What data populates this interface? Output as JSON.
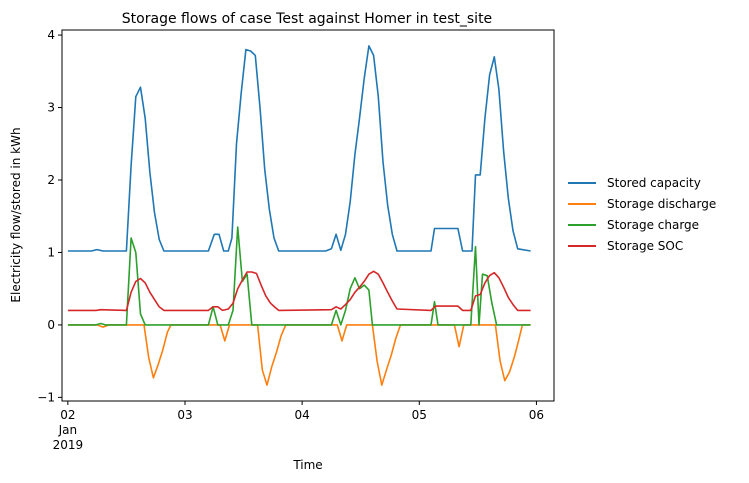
{
  "chart_data": {
    "type": "line",
    "title": "Storage flows of case Test against Homer in test_site",
    "xlabel": "Time",
    "ylabel": "Electricity flow/stored in kWh",
    "xlim": [
      -0.05,
      4.15
    ],
    "ylim": [
      -1.05,
      4.07
    ],
    "x_ticks": [
      {
        "value": 0,
        "lines": [
          "02",
          "Jan",
          "2019"
        ]
      },
      {
        "value": 1,
        "lines": [
          "03"
        ]
      },
      {
        "value": 2,
        "lines": [
          "04"
        ]
      },
      {
        "value": 3,
        "lines": [
          "05"
        ]
      },
      {
        "value": 4,
        "lines": [
          "06"
        ]
      }
    ],
    "y_ticks": [
      -1,
      0,
      1,
      2,
      3,
      4
    ],
    "grid": false,
    "legend_position": "right",
    "x_unit_note": "days from 2019-01-02 00:00",
    "series": [
      {
        "name": "Stored capacity",
        "color": "#1f77b4",
        "points": [
          [
            0,
            1.02
          ],
          [
            0.2,
            1.02
          ],
          [
            0.25,
            1.04
          ],
          [
            0.3,
            1.02
          ],
          [
            0.5,
            1.02
          ],
          [
            0.54,
            2.2
          ],
          [
            0.58,
            3.15
          ],
          [
            0.62,
            3.28
          ],
          [
            0.66,
            2.85
          ],
          [
            0.7,
            2.1
          ],
          [
            0.74,
            1.55
          ],
          [
            0.78,
            1.18
          ],
          [
            0.82,
            1.02
          ],
          [
            1.2,
            1.02
          ],
          [
            1.25,
            1.25
          ],
          [
            1.29,
            1.25
          ],
          [
            1.33,
            1.02
          ],
          [
            1.37,
            1.02
          ],
          [
            1.4,
            1.2
          ],
          [
            1.44,
            2.5
          ],
          [
            1.48,
            3.2
          ],
          [
            1.52,
            3.8
          ],
          [
            1.56,
            3.78
          ],
          [
            1.6,
            3.72
          ],
          [
            1.64,
            3.0
          ],
          [
            1.68,
            2.15
          ],
          [
            1.72,
            1.6
          ],
          [
            1.76,
            1.2
          ],
          [
            1.8,
            1.02
          ],
          [
            2.2,
            1.02
          ],
          [
            2.25,
            1.05
          ],
          [
            2.29,
            1.25
          ],
          [
            2.33,
            1.03
          ],
          [
            2.37,
            1.25
          ],
          [
            2.41,
            1.7
          ],
          [
            2.45,
            2.35
          ],
          [
            2.49,
            2.85
          ],
          [
            2.53,
            3.4
          ],
          [
            2.57,
            3.85
          ],
          [
            2.61,
            3.72
          ],
          [
            2.65,
            3.15
          ],
          [
            2.69,
            2.25
          ],
          [
            2.73,
            1.65
          ],
          [
            2.77,
            1.25
          ],
          [
            2.81,
            1.02
          ],
          [
            3.1,
            1.02
          ],
          [
            3.13,
            1.33
          ],
          [
            3.33,
            1.33
          ],
          [
            3.37,
            1.02
          ],
          [
            3.45,
            1.02
          ],
          [
            3.48,
            2.07
          ],
          [
            3.52,
            2.07
          ],
          [
            3.56,
            2.85
          ],
          [
            3.6,
            3.45
          ],
          [
            3.64,
            3.7
          ],
          [
            3.68,
            3.25
          ],
          [
            3.72,
            2.4
          ],
          [
            3.76,
            1.75
          ],
          [
            3.8,
            1.3
          ],
          [
            3.84,
            1.05
          ],
          [
            3.95,
            1.02
          ]
        ]
      },
      {
        "name": "Storage discharge",
        "color": "#ff7f0e",
        "points": [
          [
            0,
            0
          ],
          [
            0.25,
            0
          ],
          [
            0.3,
            -0.03
          ],
          [
            0.35,
            0
          ],
          [
            0.65,
            0
          ],
          [
            0.69,
            -0.45
          ],
          [
            0.73,
            -0.73
          ],
          [
            0.77,
            -0.55
          ],
          [
            0.81,
            -0.35
          ],
          [
            0.85,
            -0.1
          ],
          [
            0.88,
            0
          ],
          [
            1.3,
            0
          ],
          [
            1.34,
            -0.22
          ],
          [
            1.38,
            0
          ],
          [
            1.62,
            0
          ],
          [
            1.66,
            -0.62
          ],
          [
            1.7,
            -0.83
          ],
          [
            1.74,
            -0.58
          ],
          [
            1.78,
            -0.38
          ],
          [
            1.82,
            -0.15
          ],
          [
            1.86,
            0
          ],
          [
            2.3,
            0
          ],
          [
            2.34,
            -0.22
          ],
          [
            2.38,
            0
          ],
          [
            2.6,
            0
          ],
          [
            2.64,
            -0.5
          ],
          [
            2.68,
            -0.83
          ],
          [
            2.72,
            -0.62
          ],
          [
            2.76,
            -0.42
          ],
          [
            2.8,
            -0.18
          ],
          [
            2.84,
            0
          ],
          [
            3.3,
            0
          ],
          [
            3.34,
            -0.3
          ],
          [
            3.38,
            0
          ],
          [
            3.65,
            0
          ],
          [
            3.69,
            -0.5
          ],
          [
            3.73,
            -0.77
          ],
          [
            3.77,
            -0.65
          ],
          [
            3.81,
            -0.45
          ],
          [
            3.85,
            -0.2
          ],
          [
            3.88,
            0
          ],
          [
            3.95,
            0
          ]
        ]
      },
      {
        "name": "Storage charge",
        "color": "#2ca02c",
        "points": [
          [
            0,
            0
          ],
          [
            0.24,
            0
          ],
          [
            0.28,
            0.02
          ],
          [
            0.32,
            0
          ],
          [
            0.5,
            0
          ],
          [
            0.54,
            1.2
          ],
          [
            0.58,
            1.0
          ],
          [
            0.62,
            0.15
          ],
          [
            0.66,
            0
          ],
          [
            1.2,
            0
          ],
          [
            1.24,
            0.25
          ],
          [
            1.28,
            0
          ],
          [
            1.37,
            0
          ],
          [
            1.41,
            0.2
          ],
          [
            1.45,
            1.35
          ],
          [
            1.49,
            0.6
          ],
          [
            1.53,
            0.7
          ],
          [
            1.57,
            0
          ],
          [
            2.25,
            0
          ],
          [
            2.29,
            0.2
          ],
          [
            2.33,
            0
          ],
          [
            2.37,
            0.2
          ],
          [
            2.41,
            0.5
          ],
          [
            2.45,
            0.65
          ],
          [
            2.49,
            0.5
          ],
          [
            2.53,
            0.55
          ],
          [
            2.57,
            0.48
          ],
          [
            2.6,
            0
          ],
          [
            3.1,
            0
          ],
          [
            3.13,
            0.32
          ],
          [
            3.16,
            0
          ],
          [
            3.44,
            0
          ],
          [
            3.48,
            1.08
          ],
          [
            3.51,
            0
          ],
          [
            3.54,
            0.7
          ],
          [
            3.58,
            0.68
          ],
          [
            3.62,
            0.3
          ],
          [
            3.66,
            0
          ],
          [
            3.95,
            0
          ]
        ]
      },
      {
        "name": "Storage SOC",
        "color": "#d62728",
        "points": [
          [
            0,
            0.2
          ],
          [
            0.24,
            0.2
          ],
          [
            0.28,
            0.21
          ],
          [
            0.5,
            0.2
          ],
          [
            0.54,
            0.45
          ],
          [
            0.58,
            0.6
          ],
          [
            0.62,
            0.64
          ],
          [
            0.66,
            0.58
          ],
          [
            0.7,
            0.45
          ],
          [
            0.74,
            0.35
          ],
          [
            0.78,
            0.25
          ],
          [
            0.82,
            0.2
          ],
          [
            1.2,
            0.2
          ],
          [
            1.24,
            0.25
          ],
          [
            1.28,
            0.25
          ],
          [
            1.32,
            0.2
          ],
          [
            1.37,
            0.22
          ],
          [
            1.41,
            0.3
          ],
          [
            1.45,
            0.5
          ],
          [
            1.49,
            0.62
          ],
          [
            1.53,
            0.73
          ],
          [
            1.57,
            0.73
          ],
          [
            1.61,
            0.71
          ],
          [
            1.65,
            0.55
          ],
          [
            1.69,
            0.4
          ],
          [
            1.73,
            0.3
          ],
          [
            1.77,
            0.24
          ],
          [
            1.8,
            0.2
          ],
          [
            2.25,
            0.21
          ],
          [
            2.29,
            0.25
          ],
          [
            2.33,
            0.22
          ],
          [
            2.37,
            0.28
          ],
          [
            2.41,
            0.35
          ],
          [
            2.45,
            0.45
          ],
          [
            2.49,
            0.52
          ],
          [
            2.53,
            0.6
          ],
          [
            2.57,
            0.7
          ],
          [
            2.61,
            0.74
          ],
          [
            2.65,
            0.7
          ],
          [
            2.69,
            0.58
          ],
          [
            2.73,
            0.45
          ],
          [
            2.77,
            0.33
          ],
          [
            2.81,
            0.22
          ],
          [
            3.1,
            0.2
          ],
          [
            3.14,
            0.26
          ],
          [
            3.33,
            0.26
          ],
          [
            3.37,
            0.2
          ],
          [
            3.44,
            0.2
          ],
          [
            3.48,
            0.4
          ],
          [
            3.52,
            0.42
          ],
          [
            3.56,
            0.58
          ],
          [
            3.6,
            0.68
          ],
          [
            3.64,
            0.72
          ],
          [
            3.68,
            0.65
          ],
          [
            3.72,
            0.52
          ],
          [
            3.76,
            0.38
          ],
          [
            3.8,
            0.28
          ],
          [
            3.84,
            0.2
          ],
          [
            3.95,
            0.2
          ]
        ]
      }
    ]
  }
}
